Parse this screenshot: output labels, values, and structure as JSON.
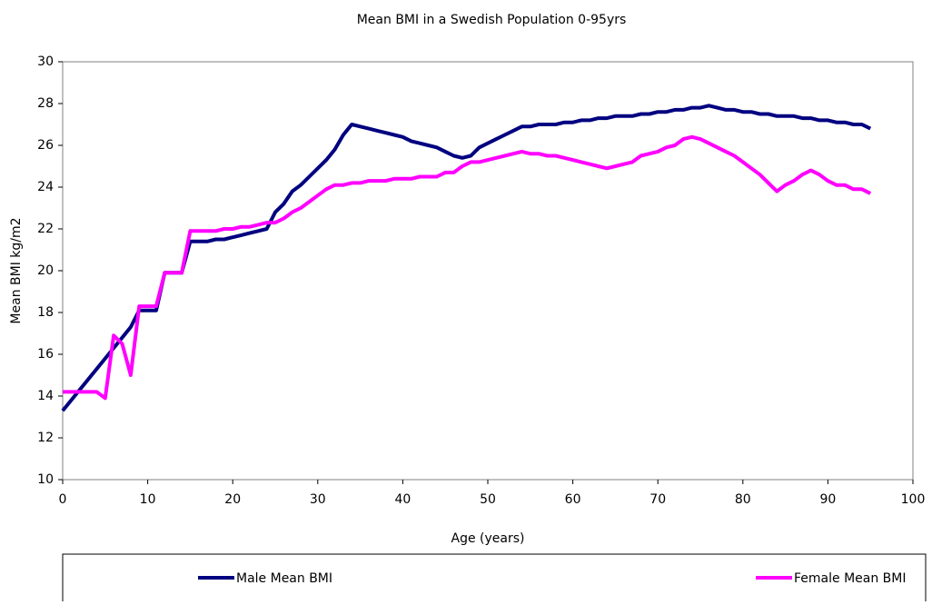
{
  "chart_data": {
    "type": "line",
    "title": "Mean BMI in a Swedish Population 0-95yrs",
    "x_label": "Age (years)",
    "y_label": "Mean BMI kg/m2",
    "x": [
      0,
      1,
      2,
      3,
      4,
      5,
      6,
      7,
      8,
      9,
      10,
      11,
      12,
      13,
      14,
      15,
      16,
      17,
      18,
      19,
      20,
      21,
      22,
      23,
      24,
      25,
      26,
      27,
      28,
      29,
      30,
      31,
      32,
      33,
      34,
      35,
      36,
      37,
      38,
      39,
      40,
      41,
      42,
      43,
      44,
      45,
      46,
      47,
      48,
      49,
      50,
      51,
      52,
      53,
      54,
      55,
      56,
      57,
      58,
      59,
      60,
      61,
      62,
      63,
      64,
      65,
      66,
      67,
      68,
      69,
      70,
      71,
      72,
      73,
      74,
      75,
      76,
      77,
      78,
      79,
      80,
      81,
      82,
      83,
      84,
      85,
      86,
      87,
      88,
      89,
      90,
      91,
      92,
      93,
      94,
      95
    ],
    "series": [
      {
        "name": "Male Mean BMI",
        "color": "#000080",
        "values": [
          13.3,
          13.8,
          14.3,
          14.8,
          15.3,
          15.8,
          16.3,
          16.8,
          17.3,
          18.1,
          18.1,
          18.1,
          19.9,
          19.9,
          19.9,
          21.4,
          21.4,
          21.4,
          21.5,
          21.5,
          21.6,
          21.7,
          21.8,
          21.9,
          22.0,
          22.8,
          23.2,
          23.8,
          24.1,
          24.5,
          24.9,
          25.3,
          25.8,
          26.5,
          27.0,
          26.9,
          26.8,
          26.7,
          26.6,
          26.5,
          26.4,
          26.2,
          26.1,
          26.0,
          25.9,
          25.7,
          25.5,
          25.4,
          25.5,
          25.9,
          26.1,
          26.3,
          26.5,
          26.7,
          26.9,
          26.9,
          27.0,
          27.0,
          27.0,
          27.1,
          27.1,
          27.2,
          27.2,
          27.3,
          27.3,
          27.4,
          27.4,
          27.4,
          27.5,
          27.5,
          27.6,
          27.6,
          27.7,
          27.7,
          27.8,
          27.8,
          27.9,
          27.8,
          27.7,
          27.7,
          27.6,
          27.6,
          27.5,
          27.5,
          27.4,
          27.4,
          27.4,
          27.3,
          27.3,
          27.2,
          27.2,
          27.1,
          27.1,
          27.0,
          27.0,
          26.8
        ]
      },
      {
        "name": "Female Mean BMI",
        "color": "#ff00ff",
        "values": [
          14.2,
          14.2,
          14.2,
          14.2,
          14.2,
          13.9,
          16.9,
          16.5,
          15.0,
          18.3,
          18.3,
          18.3,
          19.9,
          19.9,
          19.9,
          21.9,
          21.9,
          21.9,
          21.9,
          22.0,
          22.0,
          22.1,
          22.1,
          22.2,
          22.3,
          22.3,
          22.5,
          22.8,
          23.0,
          23.3,
          23.6,
          23.9,
          24.1,
          24.1,
          24.2,
          24.2,
          24.3,
          24.3,
          24.3,
          24.4,
          24.4,
          24.4,
          24.5,
          24.5,
          24.5,
          24.7,
          24.7,
          25.0,
          25.2,
          25.2,
          25.3,
          25.4,
          25.5,
          25.6,
          25.7,
          25.6,
          25.6,
          25.5,
          25.5,
          25.4,
          25.3,
          25.2,
          25.1,
          25.0,
          24.9,
          25.0,
          25.1,
          25.2,
          25.5,
          25.6,
          25.7,
          25.9,
          26.0,
          26.3,
          26.4,
          26.3,
          26.1,
          25.9,
          25.7,
          25.5,
          25.2,
          24.9,
          24.6,
          24.2,
          23.8,
          24.1,
          24.3,
          24.6,
          24.8,
          24.6,
          24.3,
          24.1,
          24.1,
          23.9,
          23.9,
          23.7
        ]
      }
    ],
    "xlim": [
      0,
      100
    ],
    "xticks": [
      0,
      10,
      20,
      30,
      40,
      50,
      60,
      70,
      80,
      90,
      100
    ],
    "ylim": [
      10,
      30
    ],
    "yticks": [
      10,
      12,
      14,
      16,
      18,
      20,
      22,
      24,
      26,
      28,
      30
    ],
    "grid": false
  }
}
